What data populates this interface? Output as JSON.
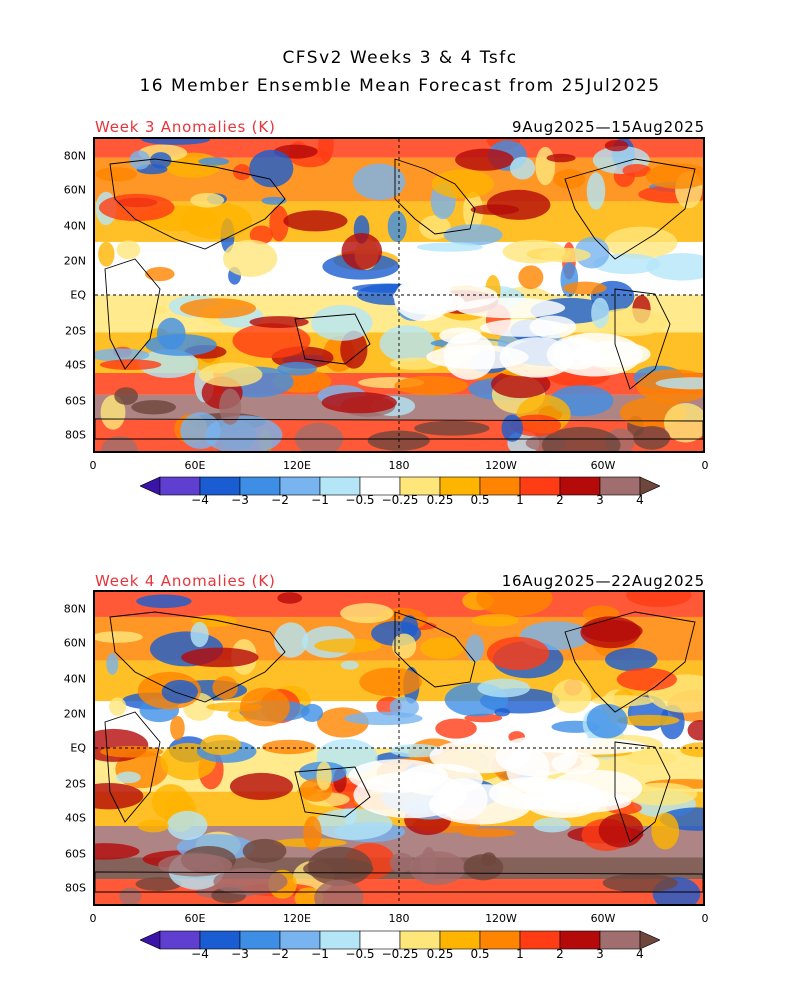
{
  "title_line1": "CFSv2 Weeks 3 & 4 Tsfc",
  "title_line2": "16 Member Ensemble Mean Forecast from 25Jul2025",
  "panels": [
    {
      "label": "Week 3 Anomalies (K)",
      "dates": "9Aug2025—15Aug2025"
    },
    {
      "label": "Week 4 Anomalies (K)",
      "dates": "16Aug2025—22Aug2025"
    }
  ],
  "lat_labels": [
    "80N",
    "60N",
    "40N",
    "20N",
    "EQ",
    "20S",
    "40S",
    "60S",
    "80S"
  ],
  "lon_labels": [
    "0",
    "60E",
    "120E",
    "180",
    "120W",
    "60W",
    "0"
  ],
  "colorbar": {
    "labels": [
      "−4",
      "−3",
      "−2",
      "−1",
      "−0.5",
      "−0.25",
      "0.25",
      "0.5",
      "1",
      "2",
      "3",
      "4"
    ],
    "colors": [
      "#3a14a8",
      "#5f3fd0",
      "#1a5cd1",
      "#3e8ee6",
      "#78b4f0",
      "#b4e6f8",
      "#ffffff",
      "#ffe67a",
      "#ffb400",
      "#ff8500",
      "#ff3c14",
      "#b40a0a",
      "#a06e6e",
      "#6e463c"
    ]
  }
}
